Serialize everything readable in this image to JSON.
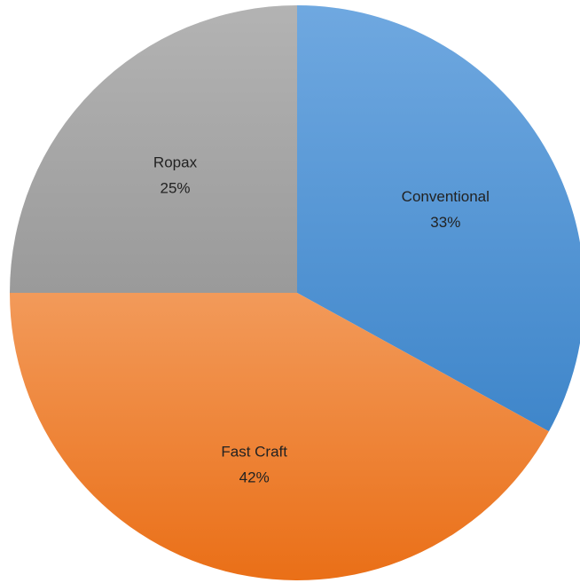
{
  "chart_data": {
    "type": "pie",
    "title": "",
    "start_angle_deg": 0,
    "direction": "clockwise",
    "slices": [
      {
        "name": "Conventional",
        "percent_label": "33%",
        "value": 33,
        "color_light": "#6fa8e0",
        "color_dark": "#3f86ca"
      },
      {
        "name": "Fast Craft",
        "percent_label": "42%",
        "value": 42,
        "color_light": "#f29a5a",
        "color_dark": "#ea6f17"
      },
      {
        "name": "Ropax",
        "percent_label": "25%",
        "value": 25,
        "color_light": "#b3b3b3",
        "color_dark": "#9a9a9a"
      }
    ]
  }
}
